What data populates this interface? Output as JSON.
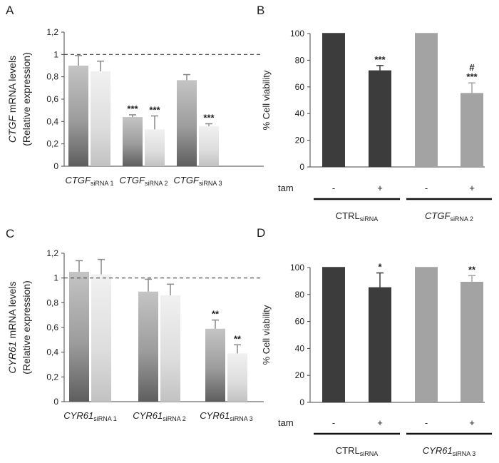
{
  "chart_data": [
    {
      "panel": "A",
      "type": "bar",
      "ylabel_italic": "CTGF",
      "ylabel_rest": " mRNA levels",
      "ylabel2": "(Relative expression)",
      "ylim": [
        0,
        1.2
      ],
      "yticks": [
        "0",
        "0,2",
        "0,4",
        "0,6",
        "0,8",
        "1",
        "1,2"
      ],
      "reference_line": 1,
      "groups": [
        {
          "name": "CTGF",
          "sub": "siRNA 1",
          "values": [
            0.9,
            0.85
          ],
          "errors": [
            0.09,
            0.09
          ],
          "marks": [
            "",
            ""
          ]
        },
        {
          "name": "CTGF",
          "sub": "siRNA 2",
          "values": [
            0.44,
            0.33
          ],
          "errors": [
            0.02,
            0.12
          ],
          "marks": [
            "***",
            "***"
          ]
        },
        {
          "name": "CTGF",
          "sub": "siRNA 3",
          "values": [
            0.77,
            0.36
          ],
          "errors": [
            0.05,
            0.02
          ],
          "marks": [
            "",
            "***"
          ]
        }
      ]
    },
    {
      "panel": "B",
      "type": "bar",
      "ylabel": "% Cell viability",
      "ylim": [
        0,
        100
      ],
      "yticks": [
        "0",
        "20",
        "40",
        "60",
        "80",
        "100"
      ],
      "row_label": "tam",
      "tam_signs": [
        "-",
        "+",
        "-",
        "+"
      ],
      "values": [
        100,
        72,
        100,
        55
      ],
      "errors": [
        0,
        4,
        0,
        8
      ],
      "marks": [
        "",
        "***",
        "",
        "#\n***"
      ],
      "colors": [
        "#3c3c3c",
        "#3c3c3c",
        "#a3a3a3",
        "#a3a3a3"
      ],
      "groups": [
        {
          "name": "CTRL",
          "italic": false,
          "sub": "siRNA"
        },
        {
          "name": "CTGF",
          "italic": true,
          "sub": "siRNA 2"
        }
      ]
    },
    {
      "panel": "C",
      "type": "bar",
      "ylabel_italic": "CYR61",
      "ylabel_rest": " mRNA levels",
      "ylabel2": "(Relative expression)",
      "ylim": [
        0,
        1.2
      ],
      "yticks": [
        "0",
        "0,2",
        "0,4",
        "0,6",
        "0,8",
        "1",
        "1,2"
      ],
      "reference_line": 1,
      "groups": [
        {
          "name": "CYR61",
          "sub": "siRNA 1",
          "values": [
            1.05,
            1.03
          ],
          "errors": [
            0.09,
            0.12
          ],
          "marks": [
            "",
            ""
          ]
        },
        {
          "name": "CYR61",
          "sub": "siRNA 2",
          "values": [
            0.89,
            0.86
          ],
          "errors": [
            0.1,
            0.09
          ],
          "marks": [
            "",
            ""
          ]
        },
        {
          "name": "CYR61",
          "sub": "siRNA 3",
          "values": [
            0.59,
            0.39
          ],
          "errors": [
            0.07,
            0.07
          ],
          "marks": [
            "**",
            "**"
          ]
        }
      ]
    },
    {
      "panel": "D",
      "type": "bar",
      "ylabel": "% Cell viability",
      "ylim": [
        0,
        100
      ],
      "yticks": [
        "0",
        "20",
        "40",
        "60",
        "80",
        "100"
      ],
      "row_label": "tam",
      "tam_signs": [
        "-",
        "+",
        "-",
        "+"
      ],
      "values": [
        100,
        85,
        100,
        89
      ],
      "errors": [
        0,
        11,
        0,
        5
      ],
      "marks": [
        "",
        "*",
        "",
        "**"
      ],
      "colors": [
        "#3c3c3c",
        "#3c3c3c",
        "#a3a3a3",
        "#a3a3a3"
      ],
      "groups": [
        {
          "name": "CTRL",
          "italic": false,
          "sub": "siRNA"
        },
        {
          "name": "CYR61",
          "italic": true,
          "sub": "siRNA 3"
        }
      ]
    }
  ]
}
